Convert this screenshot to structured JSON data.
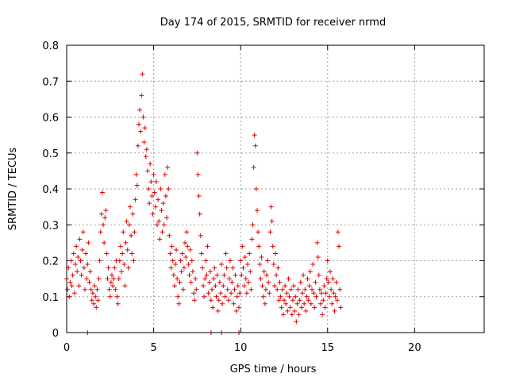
{
  "chart_data": {
    "type": "scatter",
    "title": "Day 174 of 2015, SRMTID for receiver nrmd",
    "xlabel": "GPS time / hours",
    "ylabel": "SRMTID / TECUs",
    "xlim": [
      0,
      24
    ],
    "ylim": [
      0,
      0.8
    ],
    "xticks": [
      0,
      5,
      10,
      15,
      20
    ],
    "xtick_labels": [
      "0",
      "5",
      "10",
      "15",
      "20"
    ],
    "yticks": [
      0,
      0.1,
      0.2,
      0.3,
      0.4,
      0.5,
      0.6,
      0.7,
      0.8
    ],
    "ytick_labels": [
      "0",
      "0.1",
      "0.2",
      "0.3",
      "0.4",
      "0.5",
      "0.6",
      "0.7",
      "0.8"
    ],
    "grid": true,
    "marker": "+",
    "color": "#e00000",
    "series": [
      {
        "points": [
          [
            0.0,
            0.15
          ],
          [
            0.05,
            0.12
          ],
          [
            0.1,
            0.18
          ],
          [
            0.15,
            0.1
          ],
          [
            0.2,
            0.14
          ],
          [
            0.25,
            0.2
          ],
          [
            0.3,
            0.13
          ],
          [
            0.35,
            0.16
          ],
          [
            0.4,
            0.22
          ],
          [
            0.45,
            0.11
          ],
          [
            0.5,
            0.19
          ],
          [
            0.55,
            0.24
          ],
          [
            0.6,
            0.17
          ],
          [
            0.65,
            0.21
          ],
          [
            0.7,
            0.13
          ],
          [
            0.75,
            0.26
          ],
          [
            0.8,
            0.2
          ],
          [
            0.85,
            0.16
          ],
          [
            0.9,
            0.23
          ],
          [
            0.95,
            0.28
          ],
          [
            1.0,
            0.18
          ],
          [
            1.05,
            0.12
          ],
          [
            1.1,
            0.22
          ],
          [
            1.15,
            0.15
          ],
          [
            1.2,
            0.19
          ],
          [
            1.25,
            0.25
          ],
          [
            1.3,
            0.14
          ],
          [
            1.35,
            0.17
          ],
          [
            1.4,
            0.12
          ],
          [
            1.45,
            0.09
          ],
          [
            1.5,
            0.11
          ],
          [
            1.55,
            0.08
          ],
          [
            1.6,
            0.13
          ],
          [
            1.65,
            0.1
          ],
          [
            1.7,
            0.07
          ],
          [
            1.75,
            0.12
          ],
          [
            1.8,
            0.09
          ],
          [
            1.85,
            0.15
          ],
          [
            1.9,
            0.2
          ],
          [
            1.95,
            0.28
          ],
          [
            2.0,
            0.33
          ],
          [
            2.05,
            0.39
          ],
          [
            2.1,
            0.3
          ],
          [
            2.15,
            0.25
          ],
          [
            2.2,
            0.32
          ],
          [
            2.25,
            0.34
          ],
          [
            2.3,
            0.22
          ],
          [
            2.35,
            0.15
          ],
          [
            2.4,
            0.18
          ],
          [
            2.45,
            0.12
          ],
          [
            2.5,
            0.1
          ],
          [
            2.55,
            0.14
          ],
          [
            2.6,
            0.16
          ],
          [
            2.65,
            0.13
          ],
          [
            2.7,
            0.15
          ],
          [
            2.75,
            0.18
          ],
          [
            2.8,
            0.12
          ],
          [
            2.85,
            0.2
          ],
          [
            2.9,
            0.1
          ],
          [
            2.95,
            0.08
          ],
          [
            3.0,
            0.15
          ],
          [
            3.05,
            0.2
          ],
          [
            3.1,
            0.24
          ],
          [
            3.15,
            0.17
          ],
          [
            3.2,
            0.22
          ],
          [
            3.25,
            0.28
          ],
          [
            3.3,
            0.19
          ],
          [
            3.35,
            0.13
          ],
          [
            3.4,
            0.25
          ],
          [
            3.45,
            0.31
          ],
          [
            3.5,
            0.23
          ],
          [
            3.55,
            0.18
          ],
          [
            3.6,
            0.3
          ],
          [
            3.65,
            0.35
          ],
          [
            3.7,
            0.27
          ],
          [
            3.75,
            0.22
          ],
          [
            3.8,
            0.33
          ],
          [
            3.85,
            0.2
          ],
          [
            3.9,
            0.28
          ],
          [
            3.95,
            0.37
          ],
          [
            4.0,
            0.44
          ],
          [
            4.05,
            0.41
          ],
          [
            4.1,
            0.52
          ],
          [
            4.15,
            0.58
          ],
          [
            4.2,
            0.62
          ],
          [
            4.25,
            0.56
          ],
          [
            4.3,
            0.66
          ],
          [
            4.35,
            0.72
          ],
          [
            4.4,
            0.6
          ],
          [
            4.45,
            0.53
          ],
          [
            4.5,
            0.57
          ],
          [
            4.55,
            0.49
          ],
          [
            4.6,
            0.51
          ],
          [
            4.65,
            0.45
          ],
          [
            4.7,
            0.4
          ],
          [
            4.75,
            0.36
          ],
          [
            4.8,
            0.47
          ],
          [
            4.85,
            0.42
          ],
          [
            4.9,
            0.38
          ],
          [
            4.95,
            0.33
          ],
          [
            5.0,
            0.44
          ],
          [
            5.05,
            0.39
          ],
          [
            5.1,
            0.35
          ],
          [
            5.15,
            0.42
          ],
          [
            5.2,
            0.3
          ],
          [
            5.25,
            0.37
          ],
          [
            5.3,
            0.31
          ],
          [
            5.35,
            0.26
          ],
          [
            5.4,
            0.4
          ],
          [
            5.45,
            0.34
          ],
          [
            5.5,
            0.28
          ],
          [
            5.55,
            0.36
          ],
          [
            5.6,
            0.3
          ],
          [
            5.65,
            0.44
          ],
          [
            5.7,
            0.38
          ],
          [
            5.75,
            0.32
          ],
          [
            5.8,
            0.46
          ],
          [
            5.85,
            0.4
          ],
          [
            5.9,
            0.27
          ],
          [
            5.95,
            0.22
          ],
          [
            6.0,
            0.18
          ],
          [
            6.05,
            0.24
          ],
          [
            6.1,
            0.2
          ],
          [
            6.15,
            0.16
          ],
          [
            6.2,
            0.13
          ],
          [
            6.25,
            0.19
          ],
          [
            6.3,
            0.23
          ],
          [
            6.35,
            0.15
          ],
          [
            6.4,
            0.1
          ],
          [
            6.45,
            0.08
          ],
          [
            6.5,
            0.14
          ],
          [
            6.55,
            0.2
          ],
          [
            6.6,
            0.17
          ],
          [
            6.65,
            0.22
          ],
          [
            6.7,
            0.12
          ],
          [
            6.75,
            0.18
          ],
          [
            6.8,
            0.25
          ],
          [
            6.85,
            0.21
          ],
          [
            6.9,
            0.28
          ],
          [
            6.95,
            0.24
          ],
          [
            7.0,
            0.19
          ],
          [
            7.05,
            0.16
          ],
          [
            7.1,
            0.23
          ],
          [
            7.15,
            0.14
          ],
          [
            7.2,
            0.2
          ],
          [
            7.25,
            0.17
          ],
          [
            7.3,
            0.11
          ],
          [
            7.35,
            0.09
          ],
          [
            7.4,
            0.15
          ],
          [
            7.45,
            0.12
          ],
          [
            7.5,
            0.5
          ],
          [
            7.55,
            0.44
          ],
          [
            7.6,
            0.38
          ],
          [
            7.65,
            0.33
          ],
          [
            7.7,
            0.27
          ],
          [
            7.75,
            0.22
          ],
          [
            7.8,
            0.18
          ],
          [
            7.85,
            0.13
          ],
          [
            7.9,
            0.1
          ],
          [
            7.95,
            0.15
          ],
          [
            8.0,
            0.2
          ],
          [
            8.05,
            0.16
          ],
          [
            8.1,
            0.24
          ],
          [
            8.15,
            0.11
          ],
          [
            8.2,
            0.14
          ],
          [
            8.25,
            0.17
          ],
          [
            8.3,
            0.09
          ],
          [
            8.35,
            0.12
          ],
          [
            8.4,
            0.07
          ],
          [
            8.45,
            0.15
          ],
          [
            8.5,
            0.18
          ],
          [
            8.55,
            0.13
          ],
          [
            8.6,
            0.1
          ],
          [
            8.65,
            0.16
          ],
          [
            8.7,
            0.06
          ],
          [
            8.75,
            0.09
          ],
          [
            8.8,
            0.14
          ],
          [
            8.85,
            0.11
          ],
          [
            8.9,
            0.19
          ],
          [
            8.95,
            0.08
          ],
          [
            9.0,
            0.13
          ],
          [
            9.05,
            0.16
          ],
          [
            9.1,
            0.1
          ],
          [
            9.15,
            0.22
          ],
          [
            9.2,
            0.18
          ],
          [
            9.25,
            0.12
          ],
          [
            9.3,
            0.09
          ],
          [
            9.35,
            0.15
          ],
          [
            9.4,
            0.2
          ],
          [
            9.45,
            0.11
          ],
          [
            9.5,
            0.14
          ],
          [
            9.55,
            0.18
          ],
          [
            9.6,
            0.08
          ],
          [
            9.65,
            0.12
          ],
          [
            9.7,
            0.16
          ],
          [
            9.75,
            0.06
          ],
          [
            9.8,
            0.1
          ],
          [
            9.85,
            0.13
          ],
          [
            9.9,
            0.07
          ],
          [
            9.95,
            0.11
          ],
          [
            10.0,
            0.2
          ],
          [
            10.05,
            0.16
          ],
          [
            10.1,
            0.24
          ],
          [
            10.15,
            0.18
          ],
          [
            10.2,
            0.13
          ],
          [
            10.25,
            0.21
          ],
          [
            10.3,
            0.15
          ],
          [
            10.35,
            0.11
          ],
          [
            10.4,
            0.19
          ],
          [
            10.45,
            0.14
          ],
          [
            10.5,
            0.22
          ],
          [
            10.55,
            0.17
          ],
          [
            10.6,
            0.12
          ],
          [
            10.65,
            0.26
          ],
          [
            10.7,
            0.3
          ],
          [
            10.75,
            0.46
          ],
          [
            10.8,
            0.55
          ],
          [
            10.85,
            0.52
          ],
          [
            10.9,
            0.4
          ],
          [
            10.95,
            0.34
          ],
          [
            11.0,
            0.28
          ],
          [
            11.05,
            0.24
          ],
          [
            11.1,
            0.19
          ],
          [
            11.15,
            0.15
          ],
          [
            11.2,
            0.21
          ],
          [
            11.25,
            0.13
          ],
          [
            11.3,
            0.1
          ],
          [
            11.35,
            0.17
          ],
          [
            11.4,
            0.08
          ],
          [
            11.45,
            0.12
          ],
          [
            11.5,
            0.16
          ],
          [
            11.55,
            0.2
          ],
          [
            11.6,
            0.14
          ],
          [
            11.65,
            0.11
          ],
          [
            11.7,
            0.28
          ],
          [
            11.75,
            0.35
          ],
          [
            11.8,
            0.31
          ],
          [
            11.85,
            0.24
          ],
          [
            11.9,
            0.19
          ],
          [
            11.95,
            0.13
          ],
          [
            12.0,
            0.22
          ],
          [
            12.05,
            0.16
          ],
          [
            12.1,
            0.12
          ],
          [
            12.15,
            0.18
          ],
          [
            12.2,
            0.09
          ],
          [
            12.25,
            0.14
          ],
          [
            12.3,
            0.1
          ],
          [
            12.35,
            0.07
          ],
          [
            12.4,
            0.12
          ],
          [
            12.45,
            0.05
          ],
          [
            12.5,
            0.09
          ],
          [
            12.55,
            0.13
          ],
          [
            12.6,
            0.08
          ],
          [
            12.65,
            0.11
          ],
          [
            12.7,
            0.06
          ],
          [
            12.75,
            0.15
          ],
          [
            12.8,
            0.1
          ],
          [
            12.85,
            0.07
          ],
          [
            12.9,
            0.12
          ],
          [
            12.95,
            0.05
          ],
          [
            13.0,
            0.09
          ],
          [
            13.05,
            0.13
          ],
          [
            13.1,
            0.06
          ],
          [
            13.15,
            0.1
          ],
          [
            13.2,
            0.03
          ],
          [
            13.25,
            0.08
          ],
          [
            13.3,
            0.12
          ],
          [
            13.35,
            0.05
          ],
          [
            13.4,
            0.09
          ],
          [
            13.45,
            0.14
          ],
          [
            13.5,
            0.07
          ],
          [
            13.55,
            0.11
          ],
          [
            13.6,
            0.16
          ],
          [
            13.65,
            0.08
          ],
          [
            13.7,
            0.12
          ],
          [
            13.75,
            0.06
          ],
          [
            13.8,
            0.1
          ],
          [
            13.85,
            0.15
          ],
          [
            13.9,
            0.09
          ],
          [
            13.95,
            0.13
          ],
          [
            14.0,
            0.17
          ],
          [
            14.05,
            0.08
          ],
          [
            14.1,
            0.12
          ],
          [
            14.15,
            0.19
          ],
          [
            14.2,
            0.11
          ],
          [
            14.25,
            0.07
          ],
          [
            14.3,
            0.14
          ],
          [
            14.35,
            0.1
          ],
          [
            14.4,
            0.25
          ],
          [
            14.45,
            0.21
          ],
          [
            14.5,
            0.16
          ],
          [
            14.55,
            0.12
          ],
          [
            14.6,
            0.08
          ],
          [
            14.65,
            0.11
          ],
          [
            14.7,
            0.05
          ],
          [
            14.75,
            0.09
          ],
          [
            14.8,
            0.13
          ],
          [
            14.85,
            0.07
          ],
          [
            14.9,
            0.11
          ],
          [
            14.95,
            0.15
          ],
          [
            15.0,
            0.2
          ],
          [
            15.05,
            0.14
          ],
          [
            15.1,
            0.1
          ],
          [
            15.15,
            0.17
          ],
          [
            15.2,
            0.12
          ],
          [
            15.25,
            0.08
          ],
          [
            15.3,
            0.15
          ],
          [
            15.35,
            0.11
          ],
          [
            15.4,
            0.06
          ],
          [
            15.45,
            0.1
          ],
          [
            15.5,
            0.14
          ],
          [
            15.55,
            0.09
          ],
          [
            15.6,
            0.28
          ],
          [
            15.65,
            0.24
          ],
          [
            15.7,
            0.12
          ],
          [
            15.75,
            0.07
          ],
          [
            1.2,
            0.0
          ],
          [
            8.3,
            0.0
          ],
          [
            8.9,
            0.0
          ],
          [
            9.9,
            0.0
          ]
        ]
      }
    ]
  }
}
